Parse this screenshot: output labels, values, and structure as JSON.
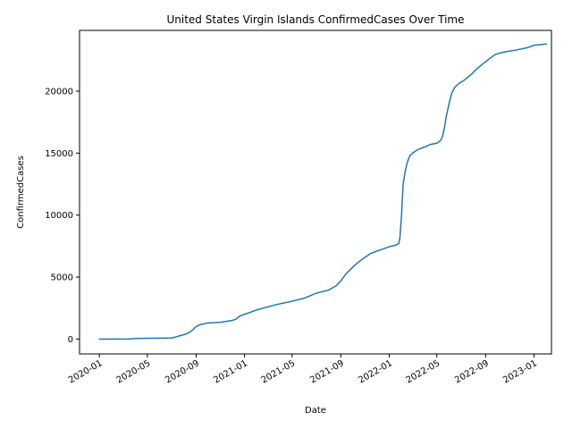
{
  "chart_data": {
    "type": "line",
    "title": "United States Virgin Islands  ConfirmedCases Over Time",
    "xlabel": "Date",
    "ylabel": "ConfirmedCases",
    "x_ticks": [
      "2020-01",
      "2020-05",
      "2020-09",
      "2021-01",
      "2021-05",
      "2021-09",
      "2022-01",
      "2022-05",
      "2022-09",
      "2023-01"
    ],
    "y_ticks": [
      0,
      5000,
      10000,
      15000,
      20000
    ],
    "xlim": [
      "2019-11-12",
      "2023-02-14"
    ],
    "ylim": [
      -1200,
      24900
    ],
    "grid": false,
    "legend": "none",
    "series": [
      {
        "color": "#1f77b4",
        "points": [
          [
            "2020-01-01",
            0
          ],
          [
            "2020-03-15",
            5
          ],
          [
            "2020-04-01",
            40
          ],
          [
            "2020-05-01",
            60
          ],
          [
            "2020-06-01",
            70
          ],
          [
            "2020-07-01",
            90
          ],
          [
            "2020-07-10",
            150
          ],
          [
            "2020-07-20",
            250
          ],
          [
            "2020-08-01",
            350
          ],
          [
            "2020-08-10",
            450
          ],
          [
            "2020-08-20",
            650
          ],
          [
            "2020-09-01",
            1000
          ],
          [
            "2020-09-10",
            1150
          ],
          [
            "2020-10-01",
            1300
          ],
          [
            "2020-11-01",
            1350
          ],
          [
            "2020-12-01",
            1500
          ],
          [
            "2020-12-10",
            1600
          ],
          [
            "2020-12-20",
            1850
          ],
          [
            "2021-01-01",
            2000
          ],
          [
            "2021-01-15",
            2150
          ],
          [
            "2021-02-01",
            2350
          ],
          [
            "2021-03-01",
            2600
          ],
          [
            "2021-04-01",
            2850
          ],
          [
            "2021-05-01",
            3050
          ],
          [
            "2021-06-01",
            3300
          ],
          [
            "2021-07-01",
            3700
          ],
          [
            "2021-08-01",
            3950
          ],
          [
            "2021-08-20",
            4300
          ],
          [
            "2021-09-01",
            4700
          ],
          [
            "2021-09-15",
            5300
          ],
          [
            "2021-10-01",
            5800
          ],
          [
            "2021-10-15",
            6200
          ],
          [
            "2021-11-01",
            6600
          ],
          [
            "2021-11-15",
            6900
          ],
          [
            "2021-12-01",
            7100
          ],
          [
            "2021-12-15",
            7250
          ],
          [
            "2022-01-01",
            7450
          ],
          [
            "2022-01-15",
            7550
          ],
          [
            "2022-01-25",
            7700
          ],
          [
            "2022-01-28",
            8200
          ],
          [
            "2022-02-01",
            10000
          ],
          [
            "2022-02-05",
            12500
          ],
          [
            "2022-02-10",
            13500
          ],
          [
            "2022-02-15",
            14200
          ],
          [
            "2022-02-22",
            14800
          ],
          [
            "2022-03-01",
            15000
          ],
          [
            "2022-03-15",
            15300
          ],
          [
            "2022-04-01",
            15500
          ],
          [
            "2022-04-15",
            15700
          ],
          [
            "2022-05-01",
            15800
          ],
          [
            "2022-05-10",
            16000
          ],
          [
            "2022-05-15",
            16300
          ],
          [
            "2022-05-20",
            17000
          ],
          [
            "2022-05-25",
            18000
          ],
          [
            "2022-06-01",
            19000
          ],
          [
            "2022-06-07",
            19800
          ],
          [
            "2022-06-15",
            20300
          ],
          [
            "2022-06-25",
            20600
          ],
          [
            "2022-07-10",
            20900
          ],
          [
            "2022-07-25",
            21300
          ],
          [
            "2022-08-10",
            21800
          ],
          [
            "2022-08-25",
            22200
          ],
          [
            "2022-09-10",
            22600
          ],
          [
            "2022-09-25",
            22950
          ],
          [
            "2022-10-10",
            23100
          ],
          [
            "2022-10-25",
            23200
          ],
          [
            "2022-11-15",
            23300
          ],
          [
            "2022-12-15",
            23500
          ],
          [
            "2023-01-01",
            23700
          ],
          [
            "2023-02-01",
            23800
          ]
        ]
      }
    ]
  }
}
